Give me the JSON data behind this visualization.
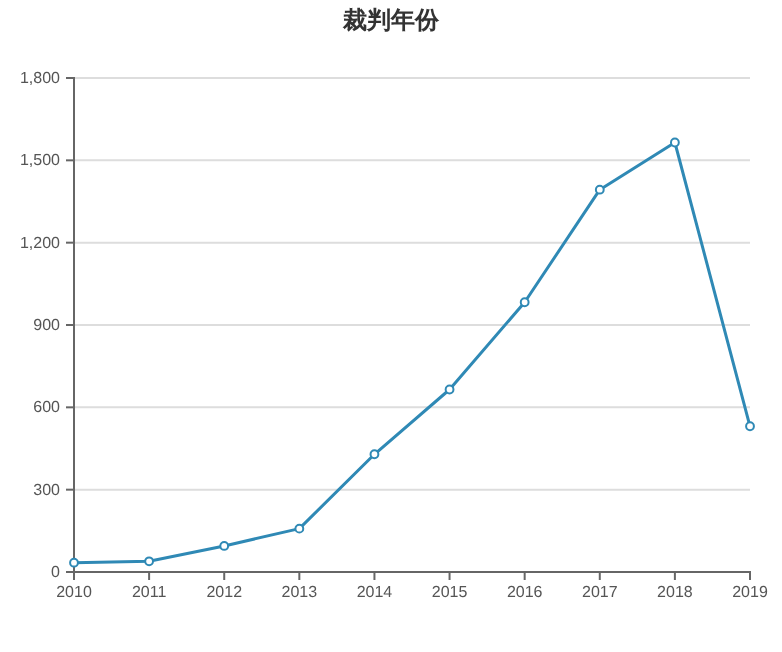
{
  "chart_data": {
    "type": "line",
    "title": "裁判年份",
    "x": [
      2010,
      2011,
      2012,
      2013,
      2014,
      2015,
      2016,
      2017,
      2018,
      2019
    ],
    "series": [
      {
        "color": "#2f89b5",
        "values": [
          34,
          39,
          95,
          158,
          429,
          665,
          983,
          1393,
          1565,
          531
        ]
      }
    ],
    "xlim": [
      2010,
      2019
    ],
    "xticks": [
      2010,
      2011,
      2012,
      2013,
      2014,
      2015,
      2016,
      2017,
      2018,
      2019
    ],
    "ylim": [
      0,
      1800
    ],
    "yticks": [
      {
        "value": 0,
        "label": "0"
      },
      {
        "value": 300,
        "label": "300"
      },
      {
        "value": 600,
        "label": "600"
      },
      {
        "value": 900,
        "label": "900"
      },
      {
        "value": 1200,
        "label": "1,200"
      },
      {
        "value": 1500,
        "label": "1,500"
      },
      {
        "value": 1800,
        "label": "1,800"
      }
    ],
    "grid": "y",
    "marker": "circle",
    "line_style": "solid"
  }
}
